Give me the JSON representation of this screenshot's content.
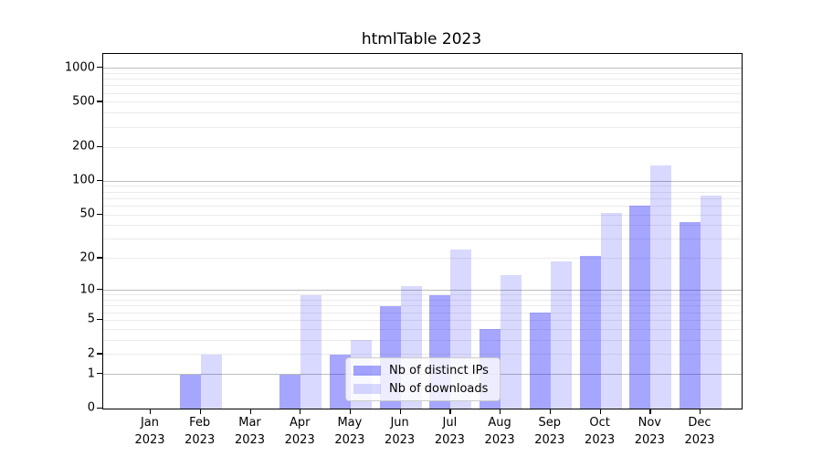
{
  "title": "htmlTable 2023",
  "legend": {
    "items": [
      {
        "label": "Nb of distinct IPs",
        "color": "rgba(0,0,255,0.35)"
      },
      {
        "label": "Nb of downloads",
        "color": "rgba(0,0,255,0.15)"
      }
    ]
  },
  "chart_data": {
    "type": "bar",
    "title": "htmlTable 2023",
    "categories": [
      "Jan",
      "Feb",
      "Mar",
      "Apr",
      "May",
      "Jun",
      "Jul",
      "Aug",
      "Sep",
      "Oct",
      "Nov",
      "Dec"
    ],
    "x_year_label": "2023",
    "series": [
      {
        "name": "Nb of distinct IPs",
        "color": "rgba(0,0,255,0.35)",
        "values": [
          0,
          1,
          0,
          1,
          2,
          7,
          9,
          4,
          6,
          21,
          60,
          43
        ]
      },
      {
        "name": "Nb of downloads",
        "color": "rgba(0,0,255,0.15)",
        "values": [
          0,
          2,
          0,
          9,
          3,
          11,
          24,
          14,
          19,
          52,
          138,
          74
        ]
      }
    ],
    "xlabel": "",
    "ylabel": "",
    "y_scale": "symlog (y ~ log10(1+value))",
    "y_ticks": [
      0,
      1,
      2,
      5,
      10,
      20,
      50,
      100,
      200,
      500,
      1000
    ],
    "y_major_gridlines": [
      1,
      10,
      100,
      1000
    ],
    "ylim": [
      0,
      1320
    ],
    "grid": true,
    "legend_position": "lower center inside plot"
  }
}
